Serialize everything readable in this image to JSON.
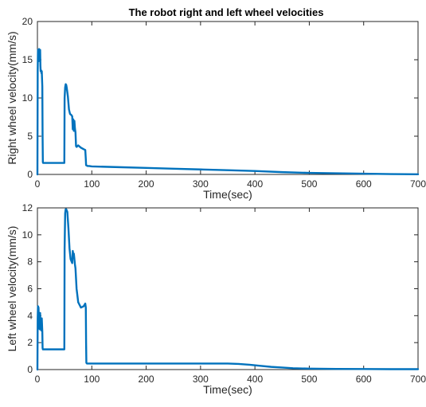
{
  "figure_title": "The robot right and left wheel velocities",
  "line_color": "#0072BD",
  "chart_data": [
    {
      "type": "line",
      "title": "The robot right and left wheel velocities",
      "xlabel": "Time(sec)",
      "ylabel": "Right wheel velocity(mm/s)",
      "xlim": [
        0,
        700
      ],
      "ylim": [
        0,
        20
      ],
      "xticks": [
        0,
        100,
        200,
        300,
        400,
        500,
        600,
        700
      ],
      "yticks": [
        0,
        5,
        10,
        15,
        20
      ],
      "grid": false,
      "series": [
        {
          "x": [
            0,
            0.5,
            1,
            2,
            3,
            4,
            5,
            5.5,
            6,
            7,
            7.5,
            8,
            9,
            9.5,
            10,
            10.5,
            49.5,
            50,
            51,
            52,
            53,
            54,
            56,
            58,
            60,
            62,
            64,
            65,
            66,
            67,
            68,
            69,
            70,
            71,
            72,
            75,
            80,
            85,
            88,
            89,
            89.5,
            90,
            92,
            95,
            100,
            150,
            200,
            250,
            300,
            350,
            400,
            450,
            500,
            550,
            600,
            650,
            700
          ],
          "y": [
            0,
            13.5,
            16.3,
            14.8,
            16.4,
            15.5,
            16.3,
            14.2,
            13.5,
            13.6,
            13.2,
            13.5,
            11.5,
            5.0,
            1.6,
            1.5,
            1.5,
            10.0,
            11.4,
            11.8,
            11.7,
            11.3,
            10.2,
            8.5,
            7.9,
            7.8,
            7.6,
            5.9,
            7.2,
            5.7,
            7.0,
            6.0,
            5.5,
            3.7,
            3.6,
            3.8,
            3.5,
            3.3,
            3.2,
            2.0,
            1.2,
            1.2,
            1.1,
            1.1,
            1.05,
            0.95,
            0.85,
            0.75,
            0.65,
            0.55,
            0.45,
            0.3,
            0.2,
            0.15,
            0.1,
            0.05,
            0.02
          ]
        }
      ]
    },
    {
      "type": "line",
      "title": "",
      "xlabel": "Time(sec)",
      "ylabel": "Left wheel velocity(mm/s)",
      "xlim": [
        0,
        700
      ],
      "ylim": [
        0,
        12
      ],
      "xticks": [
        0,
        100,
        200,
        300,
        400,
        500,
        600,
        700
      ],
      "yticks": [
        0,
        2,
        4,
        6,
        8,
        10,
        12
      ],
      "grid": false,
      "series": [
        {
          "x": [
            0,
            0.5,
            1,
            2,
            3,
            3.5,
            4,
            5,
            6,
            7,
            7.5,
            8,
            9,
            9.5,
            10,
            10.5,
            49.5,
            50,
            51,
            52,
            53,
            55,
            57,
            59,
            61,
            63,
            64,
            65,
            66,
            67,
            68,
            69,
            70,
            72,
            75,
            80,
            85,
            88,
            89,
            89.5,
            90,
            91,
            100,
            200,
            300,
            350,
            370,
            390,
            410,
            430,
            450,
            470,
            500,
            550,
            600,
            650,
            700
          ],
          "y": [
            0,
            3.8,
            4.7,
            4.6,
            3.5,
            3.2,
            3.0,
            4.2,
            3.1,
            2.9,
            3.2,
            3.8,
            2.8,
            1.6,
            1.5,
            1.5,
            1.5,
            9.0,
            11.6,
            11.9,
            11.9,
            11.7,
            10.5,
            9.0,
            8.2,
            8.0,
            7.9,
            8.8,
            8.5,
            8.6,
            8.2,
            7.8,
            7.5,
            6.0,
            5.0,
            4.6,
            4.7,
            4.9,
            4.6,
            2.0,
            0.5,
            0.45,
            0.45,
            0.45,
            0.45,
            0.45,
            0.42,
            0.36,
            0.28,
            0.2,
            0.15,
            0.1,
            0.07,
            0.05,
            0.04,
            0.03,
            0.03
          ]
        }
      ]
    }
  ]
}
